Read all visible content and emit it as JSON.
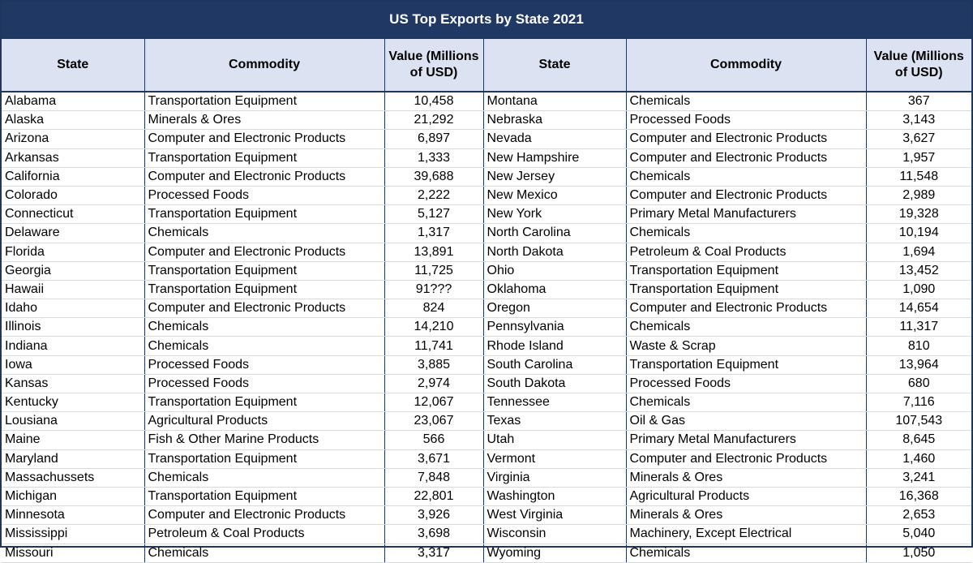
{
  "title": "US Top Exports by State 2021",
  "headers": {
    "state": "State",
    "commodity": "Commodity",
    "value_left": "Value (Millions of USD)",
    "value_right": "Value (Millions of USD)"
  },
  "rows": [
    {
      "l": {
        "state": "Alabama",
        "commodity": "Transportation Equipment",
        "value": "10,458"
      },
      "r": {
        "state": "Montana",
        "commodity": "Chemicals",
        "value": "367"
      }
    },
    {
      "l": {
        "state": "Alaska",
        "commodity": "Minerals & Ores",
        "value": "21,292"
      },
      "r": {
        "state": "Nebraska",
        "commodity": "Processed Foods",
        "value": "3,143"
      }
    },
    {
      "l": {
        "state": "Arizona",
        "commodity": "Computer and Electronic Products",
        "value": "6,897"
      },
      "r": {
        "state": "Nevada",
        "commodity": "Computer and Electronic Products",
        "value": "3,627"
      }
    },
    {
      "l": {
        "state": "Arkansas",
        "commodity": "Transportation Equipment",
        "value": "1,333"
      },
      "r": {
        "state": "New Hampshire",
        "commodity": "Computer and Electronic Products",
        "value": "1,957"
      }
    },
    {
      "l": {
        "state": "California",
        "commodity": "Computer and Electronic Products",
        "value": "39,688"
      },
      "r": {
        "state": "New Jersey",
        "commodity": "Chemicals",
        "value": "11,548"
      }
    },
    {
      "l": {
        "state": "Colorado",
        "commodity": "Processed Foods",
        "value": "2,222"
      },
      "r": {
        "state": "New Mexico",
        "commodity": "Computer and Electronic Products",
        "value": "2,989"
      }
    },
    {
      "l": {
        "state": "Connecticut",
        "commodity": "Transportation Equipment",
        "value": "5,127"
      },
      "r": {
        "state": "New York",
        "commodity": "Primary Metal Manufacturers",
        "value": "19,328"
      }
    },
    {
      "l": {
        "state": "Delaware",
        "commodity": "Chemicals",
        "value": "1,317"
      },
      "r": {
        "state": "North Carolina",
        "commodity": "Chemicals",
        "value": "10,194"
      }
    },
    {
      "l": {
        "state": "Florida",
        "commodity": "Computer and Electronic Products",
        "value": "13,891"
      },
      "r": {
        "state": "North Dakota",
        "commodity": "Petroleum & Coal Products",
        "value": "1,694"
      }
    },
    {
      "l": {
        "state": "Georgia",
        "commodity": "Transportation Equipment",
        "value": "11,725"
      },
      "r": {
        "state": "Ohio",
        "commodity": "Transportation Equipment",
        "value": "13,452"
      }
    },
    {
      "l": {
        "state": "Hawaii",
        "commodity": "Transportation Equipment",
        "value": "91???"
      },
      "r": {
        "state": "Oklahoma",
        "commodity": "Transportation Equipment",
        "value": "1,090"
      }
    },
    {
      "l": {
        "state": "Idaho",
        "commodity": "Computer and Electronic Products",
        "value": "824"
      },
      "r": {
        "state": "Oregon",
        "commodity": "Computer and Electronic Products",
        "value": "14,654"
      }
    },
    {
      "l": {
        "state": "Illinois",
        "commodity": "Chemicals",
        "value": "14,210"
      },
      "r": {
        "state": "Pennsylvania",
        "commodity": "Chemicals",
        "value": "11,317"
      }
    },
    {
      "l": {
        "state": "Indiana",
        "commodity": "Chemicals",
        "value": "11,741"
      },
      "r": {
        "state": "Rhode Island",
        "commodity": "Waste & Scrap",
        "value": "810"
      }
    },
    {
      "l": {
        "state": "Iowa",
        "commodity": "Processed Foods",
        "value": "3,885"
      },
      "r": {
        "state": "South Carolina",
        "commodity": "Transportation Equipment",
        "value": "13,964"
      }
    },
    {
      "l": {
        "state": "Kansas",
        "commodity": "Processed Foods",
        "value": "2,974"
      },
      "r": {
        "state": "South Dakota",
        "commodity": "Processed Foods",
        "value": "680"
      }
    },
    {
      "l": {
        "state": "Kentucky",
        "commodity": "Transportation Equipment",
        "value": "12,067"
      },
      "r": {
        "state": "Tennessee",
        "commodity": "Chemicals",
        "value": "7,116"
      }
    },
    {
      "l": {
        "state": "Lousiana",
        "commodity": "Agricultural Products",
        "value": "23,067"
      },
      "r": {
        "state": "Texas",
        "commodity": "Oil & Gas",
        "value": "107,543"
      }
    },
    {
      "l": {
        "state": "Maine",
        "commodity": "Fish & Other Marine Products",
        "value": "566"
      },
      "r": {
        "state": "Utah",
        "commodity": "Primary Metal Manufacturers",
        "value": "8,645"
      }
    },
    {
      "l": {
        "state": "Maryland",
        "commodity": "Transportation Equipment",
        "value": "3,671"
      },
      "r": {
        "state": "Vermont",
        "commodity": "Computer and Electronic Products",
        "value": "1,460"
      }
    },
    {
      "l": {
        "state": "Massachussets",
        "commodity": "Chemicals",
        "value": "7,848"
      },
      "r": {
        "state": "Virginia",
        "commodity": "Minerals & Ores",
        "value": "3,241"
      }
    },
    {
      "l": {
        "state": "Michigan",
        "commodity": "Transportation Equipment",
        "value": "22,801"
      },
      "r": {
        "state": "Washington",
        "commodity": "Agricultural Products",
        "value": "16,368"
      }
    },
    {
      "l": {
        "state": "Minnesota",
        "commodity": "Computer and Electronic Products",
        "value": "3,926"
      },
      "r": {
        "state": "West Virginia",
        "commodity": "Minerals & Ores",
        "value": "2,653"
      }
    },
    {
      "l": {
        "state": "Mississippi",
        "commodity": "Petroleum & Coal Products",
        "value": "3,698"
      },
      "r": {
        "state": "Wisconsin",
        "commodity": "Machinery, Except Electrical",
        "value": "5,040"
      }
    },
    {
      "l": {
        "state": "Missouri",
        "commodity": "Chemicals",
        "value": "3,317"
      },
      "r": {
        "state": "Wyoming",
        "commodity": "Chemicals",
        "value": "1,050"
      }
    }
  ]
}
